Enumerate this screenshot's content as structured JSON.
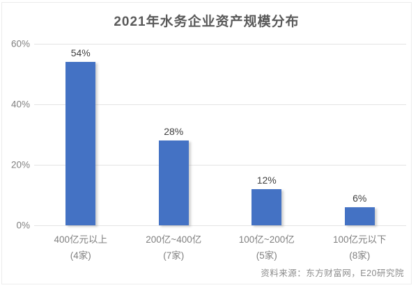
{
  "chart_data": {
    "type": "bar",
    "title": "2021年水务企业资产规模分布",
    "categories": [
      "400亿元以上",
      "200亿~400亿",
      "100亿~200亿",
      "100亿元以下"
    ],
    "category_counts": [
      "(4家)",
      "(7家)",
      "(5家)",
      "(8家)"
    ],
    "values": [
      54,
      28,
      12,
      6
    ],
    "value_labels": [
      "54%",
      "28%",
      "12%",
      "6%"
    ],
    "ylim": [
      0,
      60
    ],
    "yticks": [
      0,
      20,
      40,
      60
    ],
    "ytick_labels": [
      "0%",
      "20%",
      "40%",
      "60%"
    ],
    "xlabel": "",
    "ylabel": "",
    "grid": true,
    "legend": "none",
    "source": "资料来源：东方财富网，E20研究院",
    "colors": {
      "bar": "#4472C4",
      "gridline": "#e4e4e4",
      "title_text": "#595959",
      "axis_text": "#808080",
      "value_label_text": "#404040",
      "source_text": "#8c8c8c",
      "card_border": "#ececec",
      "background": "#ffffff"
    }
  }
}
